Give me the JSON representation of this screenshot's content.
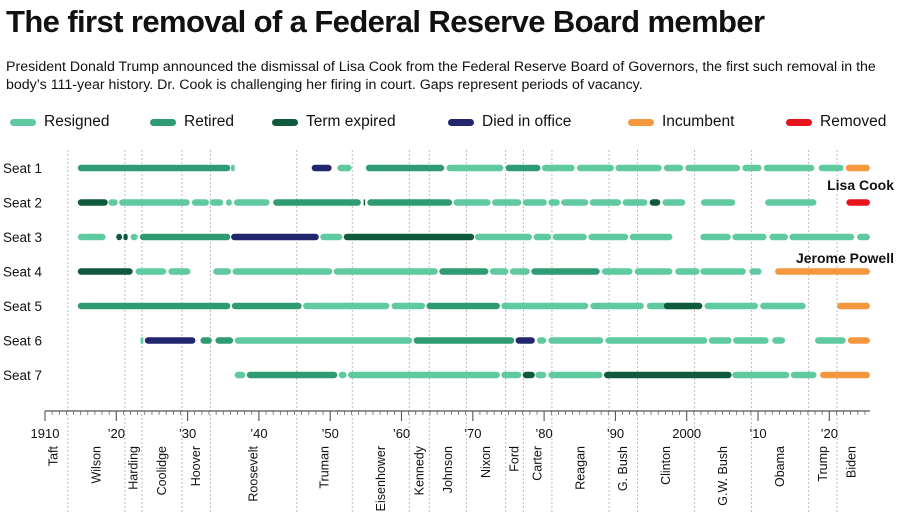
{
  "title": "The first removal of a Federal Reserve Board member",
  "subtitle": "President Donald Trump announced the dismissal of Lisa Cook from the Federal Reserve Board of Governors, the first such removal in the body’s 111-year history. Dr. Cook is challenging her firing in court. Gaps represent periods of vacancy.",
  "legend": [
    {
      "key": "resigned",
      "label": "Resigned",
      "color": "#5fc9a0"
    },
    {
      "key": "retired",
      "label": "Retired",
      "color": "#2e9b72"
    },
    {
      "key": "term_expired",
      "label": "Term expired",
      "color": "#0f5a3d"
    },
    {
      "key": "died",
      "label": "Died in office",
      "color": "#22266e"
    },
    {
      "key": "incumbent",
      "label": "Incumbent",
      "color": "#f5973f"
    },
    {
      "key": "removed",
      "label": "Removed",
      "color": "#e8141c"
    }
  ],
  "chart_data": {
    "type": "timeline",
    "x_ticks": [
      {
        "value": 1910,
        "label": "1910"
      },
      {
        "value": 1920,
        "label": "’20"
      },
      {
        "value": 1930,
        "label": "’30"
      },
      {
        "value": 1940,
        "label": "’40"
      },
      {
        "value": 1950,
        "label": "’50"
      },
      {
        "value": 1960,
        "label": "’60"
      },
      {
        "value": 1970,
        "label": "’70"
      },
      {
        "value": 1980,
        "label": "’80"
      },
      {
        "value": 1990,
        "label": "’90"
      },
      {
        "value": 2000,
        "label": "2000"
      },
      {
        "value": 2010,
        "label": "’10"
      },
      {
        "value": 2020,
        "label": "’20"
      }
    ],
    "xlim": [
      1910,
      2025.7
    ],
    "presidents": [
      {
        "name": "Taft",
        "start": 1909.2,
        "end": 1913.2
      },
      {
        "name": "Wilson",
        "start": 1913.2,
        "end": 1921.2
      },
      {
        "name": "Harding",
        "start": 1921.2,
        "end": 1923.6
      },
      {
        "name": "Coolidge",
        "start": 1923.6,
        "end": 1929.2
      },
      {
        "name": "Hoover",
        "start": 1929.2,
        "end": 1933.2
      },
      {
        "name": "Roosevelt",
        "start": 1933.2,
        "end": 1945.3
      },
      {
        "name": "Truman",
        "start": 1945.3,
        "end": 1953.1
      },
      {
        "name": "Eisenhower",
        "start": 1953.1,
        "end": 1961.1
      },
      {
        "name": "Kennedy",
        "start": 1961.1,
        "end": 1963.9
      },
      {
        "name": "Johnson",
        "start": 1963.9,
        "end": 1969.1
      },
      {
        "name": "Nixon",
        "start": 1969.1,
        "end": 1974.6
      },
      {
        "name": "Ford",
        "start": 1974.6,
        "end": 1977.1
      },
      {
        "name": "Carter",
        "start": 1977.1,
        "end": 1981.1
      },
      {
        "name": "Reagan",
        "start": 1981.1,
        "end": 1989.1
      },
      {
        "name": "G. Bush",
        "start": 1989.1,
        "end": 1993.1
      },
      {
        "name": "Clinton",
        "start": 1993.1,
        "end": 2001.1
      },
      {
        "name": "G.W. Bush",
        "start": 2001.1,
        "end": 2009.1
      },
      {
        "name": "Obama",
        "start": 2009.1,
        "end": 2017.1
      },
      {
        "name": "Trump",
        "start": 2017.1,
        "end": 2021.1
      },
      {
        "name": "Biden",
        "start": 2021.1,
        "end": 2025.1
      }
    ],
    "seats": [
      {
        "name": "Seat 1",
        "terms": [
          {
            "start": 1914.6,
            "end": 1936.0,
            "status": "retired"
          },
          {
            "start": 1936.1,
            "end": 1936.6,
            "status": "resigned"
          },
          {
            "start": 1947.4,
            "end": 1950.2,
            "status": "died"
          },
          {
            "start": 1951.0,
            "end": 1953.0,
            "status": "resigned"
          },
          {
            "start": 1955.0,
            "end": 1966.0,
            "status": "retired"
          },
          {
            "start": 1966.3,
            "end": 1974.3,
            "status": "resigned"
          },
          {
            "start": 1974.6,
            "end": 1979.5,
            "status": "retired"
          },
          {
            "start": 1979.7,
            "end": 1984.3,
            "status": "resigned"
          },
          {
            "start": 1984.6,
            "end": 1989.8,
            "status": "resigned"
          },
          {
            "start": 1990.0,
            "end": 1996.5,
            "status": "resigned"
          },
          {
            "start": 1996.8,
            "end": 1999.5,
            "status": "resigned"
          },
          {
            "start": 1999.8,
            "end": 2007.5,
            "status": "resigned"
          },
          {
            "start": 2007.8,
            "end": 2010.5,
            "status": "resigned"
          },
          {
            "start": 2010.8,
            "end": 2017.9,
            "status": "resigned"
          },
          {
            "start": 2018.5,
            "end": 2022.0,
            "status": "resigned"
          },
          {
            "start": 2022.3,
            "end": 2025.7,
            "status": "incumbent"
          }
        ]
      },
      {
        "name": "Seat 2",
        "terms": [
          {
            "start": 1914.6,
            "end": 1918.8,
            "status": "term_expired"
          },
          {
            "start": 1918.9,
            "end": 1920.2,
            "status": "resigned"
          },
          {
            "start": 1920.4,
            "end": 1930.3,
            "status": "resigned"
          },
          {
            "start": 1930.6,
            "end": 1933.0,
            "status": "resigned"
          },
          {
            "start": 1933.1,
            "end": 1935.0,
            "status": "resigned"
          },
          {
            "start": 1935.4,
            "end": 1936.2,
            "status": "resigned"
          },
          {
            "start": 1936.5,
            "end": 1941.5,
            "status": "resigned"
          },
          {
            "start": 1942.0,
            "end": 1954.3,
            "status": "retired"
          },
          {
            "start": 1954.7,
            "end": 1954.9,
            "status": "term_expired"
          },
          {
            "start": 1955.2,
            "end": 1967.1,
            "status": "retired"
          },
          {
            "start": 1967.3,
            "end": 1972.5,
            "status": "resigned"
          },
          {
            "start": 1972.7,
            "end": 1976.8,
            "status": "resigned"
          },
          {
            "start": 1977.0,
            "end": 1980.4,
            "status": "resigned"
          },
          {
            "start": 1980.6,
            "end": 1982.2,
            "status": "resigned"
          },
          {
            "start": 1982.4,
            "end": 1986.2,
            "status": "resigned"
          },
          {
            "start": 1986.4,
            "end": 1990.8,
            "status": "resigned"
          },
          {
            "start": 1991.0,
            "end": 1994.5,
            "status": "resigned"
          },
          {
            "start": 1994.8,
            "end": 1996.3,
            "status": "term_expired"
          },
          {
            "start": 1996.6,
            "end": 1999.8,
            "status": "resigned"
          },
          {
            "start": 2002.0,
            "end": 2006.8,
            "status": "resigned"
          },
          {
            "start": 2011.0,
            "end": 2018.2,
            "status": "resigned"
          },
          {
            "start": 2022.4,
            "end": 2025.7,
            "status": "removed"
          }
        ]
      },
      {
        "name": "Seat 3",
        "terms": [
          {
            "start": 1914.6,
            "end": 1918.5,
            "status": "resigned"
          },
          {
            "start": 1920.0,
            "end": 1920.8,
            "status": "term_expired"
          },
          {
            "start": 1921.0,
            "end": 1921.6,
            "status": "term_expired"
          },
          {
            "start": 1922.0,
            "end": 1923.0,
            "status": "resigned"
          },
          {
            "start": 1923.3,
            "end": 1936.0,
            "status": "retired"
          },
          {
            "start": 1936.1,
            "end": 1948.4,
            "status": "died"
          },
          {
            "start": 1948.6,
            "end": 1951.7,
            "status": "resigned"
          },
          {
            "start": 1951.9,
            "end": 1970.2,
            "status": "term_expired"
          },
          {
            "start": 1970.3,
            "end": 1978.3,
            "status": "resigned"
          },
          {
            "start": 1978.5,
            "end": 1981.0,
            "status": "resigned"
          },
          {
            "start": 1981.2,
            "end": 1986.0,
            "status": "resigned"
          },
          {
            "start": 1986.2,
            "end": 1991.8,
            "status": "resigned"
          },
          {
            "start": 1992.0,
            "end": 1998.0,
            "status": "resigned"
          },
          {
            "start": 2001.9,
            "end": 2006.2,
            "status": "resigned"
          },
          {
            "start": 2006.4,
            "end": 2011.2,
            "status": "resigned"
          },
          {
            "start": 2011.6,
            "end": 2014.2,
            "status": "resigned"
          },
          {
            "start": 2014.4,
            "end": 2023.5,
            "status": "resigned"
          },
          {
            "start": 2023.9,
            "end": 2025.7,
            "status": "resigned"
          }
        ]
      },
      {
        "name": "Seat 4",
        "terms": [
          {
            "start": 1914.6,
            "end": 1922.3,
            "status": "term_expired"
          },
          {
            "start": 1922.7,
            "end": 1927.0,
            "status": "resigned"
          },
          {
            "start": 1927.3,
            "end": 1930.4,
            "status": "resigned"
          },
          {
            "start": 1933.6,
            "end": 1936.1,
            "status": "resigned"
          },
          {
            "start": 1936.3,
            "end": 1950.3,
            "status": "resigned"
          },
          {
            "start": 1950.5,
            "end": 1965.1,
            "status": "resigned"
          },
          {
            "start": 1965.3,
            "end": 1972.2,
            "status": "retired"
          },
          {
            "start": 1972.4,
            "end": 1975.0,
            "status": "resigned"
          },
          {
            "start": 1975.2,
            "end": 1978.0,
            "status": "resigned"
          },
          {
            "start": 1978.2,
            "end": 1987.8,
            "status": "retired"
          },
          {
            "start": 1988.1,
            "end": 1992.4,
            "status": "resigned"
          },
          {
            "start": 1992.7,
            "end": 1998.0,
            "status": "resigned"
          },
          {
            "start": 1998.4,
            "end": 2001.8,
            "status": "resigned"
          },
          {
            "start": 2001.9,
            "end": 2008.3,
            "status": "resigned"
          },
          {
            "start": 2008.8,
            "end": 2010.5,
            "status": "resigned"
          },
          {
            "start": 2012.4,
            "end": 2025.7,
            "status": "incumbent"
          }
        ]
      },
      {
        "name": "Seat 5",
        "terms": [
          {
            "start": 1914.6,
            "end": 1936.0,
            "status": "retired"
          },
          {
            "start": 1936.2,
            "end": 1946.0,
            "status": "retired"
          },
          {
            "start": 1946.2,
            "end": 1958.3,
            "status": "resigned"
          },
          {
            "start": 1958.6,
            "end": 1963.3,
            "status": "resigned"
          },
          {
            "start": 1963.5,
            "end": 1973.8,
            "status": "retired"
          },
          {
            "start": 1974.0,
            "end": 1986.2,
            "status": "resigned"
          },
          {
            "start": 1986.5,
            "end": 1994.0,
            "status": "resigned"
          },
          {
            "start": 1994.4,
            "end": 2000.8,
            "status": "resigned"
          },
          {
            "start": 1996.8,
            "end": 2002.2,
            "status": "term_expired"
          },
          {
            "start": 2002.5,
            "end": 2010.0,
            "status": "resigned"
          },
          {
            "start": 2010.3,
            "end": 2016.7,
            "status": "resigned"
          },
          {
            "start": 2021.1,
            "end": 2025.7,
            "status": "incumbent"
          }
        ]
      },
      {
        "name": "Seat 6",
        "terms": [
          {
            "start": 1923.4,
            "end": 1923.8,
            "status": "resigned"
          },
          {
            "start": 1924.0,
            "end": 1931.1,
            "status": "died"
          },
          {
            "start": 1931.8,
            "end": 1933.4,
            "status": "retired"
          },
          {
            "start": 1933.9,
            "end": 1936.4,
            "status": "retired"
          },
          {
            "start": 1936.6,
            "end": 1961.5,
            "status": "resigned"
          },
          {
            "start": 1961.7,
            "end": 1975.8,
            "status": "retired"
          },
          {
            "start": 1976.0,
            "end": 1978.7,
            "status": "died"
          },
          {
            "start": 1979.0,
            "end": 1980.3,
            "status": "resigned"
          },
          {
            "start": 1980.6,
            "end": 1988.3,
            "status": "resigned"
          },
          {
            "start": 1988.6,
            "end": 2002.9,
            "status": "resigned"
          },
          {
            "start": 2003.1,
            "end": 2006.3,
            "status": "resigned"
          },
          {
            "start": 2006.5,
            "end": 2011.5,
            "status": "resigned"
          },
          {
            "start": 2012.0,
            "end": 2013.8,
            "status": "resigned"
          },
          {
            "start": 2018.0,
            "end": 2022.3,
            "status": "resigned"
          },
          {
            "start": 2022.6,
            "end": 2025.7,
            "status": "incumbent"
          }
        ]
      },
      {
        "name": "Seat 7",
        "terms": [
          {
            "start": 1936.6,
            "end": 1938.1,
            "status": "resigned"
          },
          {
            "start": 1938.3,
            "end": 1951.0,
            "status": "retired"
          },
          {
            "start": 1951.2,
            "end": 1952.3,
            "status": "resigned"
          },
          {
            "start": 1952.5,
            "end": 1973.8,
            "status": "resigned"
          },
          {
            "start": 1974.0,
            "end": 1976.8,
            "status": "resigned"
          },
          {
            "start": 1977.0,
            "end": 1978.7,
            "status": "term_expired"
          },
          {
            "start": 1978.8,
            "end": 1980.3,
            "status": "resigned"
          },
          {
            "start": 1980.6,
            "end": 1988.2,
            "status": "resigned"
          },
          {
            "start": 1988.4,
            "end": 2006.3,
            "status": "term_expired"
          },
          {
            "start": 2006.4,
            "end": 2014.4,
            "status": "resigned"
          },
          {
            "start": 2014.6,
            "end": 2018.2,
            "status": "resigned"
          },
          {
            "start": 2018.7,
            "end": 2025.7,
            "status": "incumbent"
          }
        ]
      }
    ],
    "annotations": [
      {
        "text": "Lisa Cook",
        "seat": "Seat 2",
        "anchor": "end"
      },
      {
        "text": "Jerome Powell",
        "seat": "Seat 4",
        "anchor": "end"
      }
    ]
  }
}
